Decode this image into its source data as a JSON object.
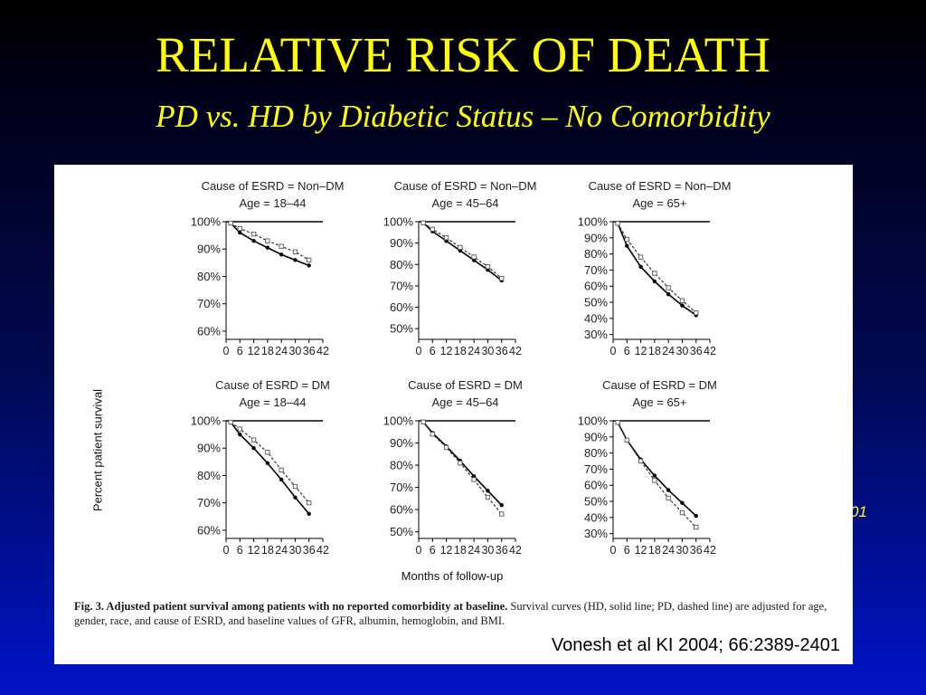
{
  "slide": {
    "title": "RELATIVE RISK OF DEATH",
    "subtitle": "PD vs. HD by Diabetic Status – No Comorbidity",
    "partially_hidden_text": "01",
    "citation": "Vonesh et al KI 2004; 66:2389-2401",
    "colors": {
      "background_top": "#000000",
      "background_bottom": "#0014c8",
      "title": "#ffff00",
      "panel": "#ffffff"
    }
  },
  "figure": {
    "ylabel": "Percent patient survival",
    "xlabel": "Months of follow-up",
    "caption_bold": "Fig. 3.  Adjusted patient survival among patients with no reported comorbidity at baseline.",
    "caption_rest": " Survival curves (HD, solid line; PD, dashed line) are adjusted for age, gender, race, and cause of ESRD, and baseline values of GFR, albumin, hemoglobin, and BMI."
  },
  "chart_data": [
    {
      "type": "line",
      "title": [
        "Cause of ESRD = Non–DM",
        "Age = 18–44"
      ],
      "x": [
        0,
        6,
        12,
        18,
        24,
        30,
        36,
        42
      ],
      "xticks": [
        "0",
        "6",
        "12",
        "18",
        "24",
        "30",
        "36",
        "42"
      ],
      "ylim": [
        57,
        100
      ],
      "yticks": [
        60,
        70,
        80,
        90,
        100
      ],
      "yticklabels": [
        "60%",
        "70%",
        "80%",
        "90%",
        "100%"
      ],
      "series": [
        {
          "style": "solid",
          "marker": "filled",
          "points": [
            [
              2,
              99.5
            ],
            [
              6,
              96
            ],
            [
              12,
              93
            ],
            [
              18,
              90.5
            ],
            [
              24,
              88
            ],
            [
              30,
              86
            ],
            [
              36,
              84
            ]
          ]
        },
        {
          "style": "dashed",
          "marker": "open",
          "points": [
            [
              2,
              99.5
            ],
            [
              6,
              97.5
            ],
            [
              12,
              95.5
            ],
            [
              18,
              93
            ],
            [
              24,
              91
            ],
            [
              30,
              89
            ],
            [
              36,
              86
            ]
          ]
        }
      ]
    },
    {
      "type": "line",
      "title": [
        "Cause of ESRD = Non–DM",
        "Age = 45–64"
      ],
      "x": [
        0,
        6,
        12,
        18,
        24,
        30,
        36,
        42
      ],
      "xticks": [
        "0",
        "6",
        "12",
        "18",
        "24",
        "30",
        "36",
        "42"
      ],
      "ylim": [
        45,
        100
      ],
      "yticks": [
        50,
        60,
        70,
        80,
        90,
        100
      ],
      "yticklabels": [
        "50%",
        "60%",
        "70%",
        "80%",
        "90%",
        "100%"
      ],
      "series": [
        {
          "style": "solid",
          "marker": "filled",
          "points": [
            [
              2,
              99.5
            ],
            [
              6,
              95.5
            ],
            [
              12,
              91
            ],
            [
              18,
              86.5
            ],
            [
              24,
              82
            ],
            [
              30,
              77.5
            ],
            [
              36,
              72.5
            ]
          ]
        },
        {
          "style": "dashed",
          "marker": "open",
          "points": [
            [
              2,
              99.5
            ],
            [
              6,
              96.5
            ],
            [
              12,
              92.5
            ],
            [
              18,
              88
            ],
            [
              24,
              83.5
            ],
            [
              30,
              79
            ],
            [
              36,
              73.5
            ]
          ]
        }
      ]
    },
    {
      "type": "line",
      "title": [
        "Cause of ESRD = Non–DM",
        "Age = 65+"
      ],
      "x": [
        0,
        6,
        12,
        18,
        24,
        30,
        36,
        42
      ],
      "xticks": [
        "0",
        "6",
        "12",
        "18",
        "24",
        "30",
        "36",
        "42"
      ],
      "ylim": [
        27,
        100
      ],
      "yticks": [
        30,
        40,
        50,
        60,
        70,
        80,
        90,
        100
      ],
      "yticklabels": [
        "30%",
        "40%",
        "50%",
        "60%",
        "70%",
        "80%",
        "90%",
        "100%"
      ],
      "series": [
        {
          "style": "solid",
          "marker": "filled",
          "points": [
            [
              2,
              99
            ],
            [
              6,
              85
            ],
            [
              12,
              72
            ],
            [
              18,
              63
            ],
            [
              24,
              55
            ],
            [
              30,
              48
            ],
            [
              36,
              42
            ]
          ]
        },
        {
          "style": "dashed",
          "marker": "open",
          "points": [
            [
              2,
              99
            ],
            [
              6,
              89
            ],
            [
              12,
              78
            ],
            [
              18,
              68
            ],
            [
              24,
              59
            ],
            [
              30,
              51
            ],
            [
              36,
              43.5
            ]
          ]
        }
      ]
    },
    {
      "type": "line",
      "title": [
        "Cause of ESRD = DM",
        "Age = 18–44"
      ],
      "x": [
        0,
        6,
        12,
        18,
        24,
        30,
        36,
        42
      ],
      "xticks": [
        "0",
        "6",
        "12",
        "18",
        "24",
        "30",
        "36",
        "42"
      ],
      "ylim": [
        57,
        100
      ],
      "yticks": [
        60,
        70,
        80,
        90,
        100
      ],
      "yticklabels": [
        "60%",
        "70%",
        "80%",
        "90%",
        "100%"
      ],
      "series": [
        {
          "style": "solid",
          "marker": "filled",
          "points": [
            [
              2,
              99.5
            ],
            [
              6,
              95
            ],
            [
              12,
              90
            ],
            [
              18,
              84.5
            ],
            [
              24,
              78.5
            ],
            [
              30,
              72
            ],
            [
              36,
              66
            ]
          ]
        },
        {
          "style": "dashed",
          "marker": "open",
          "points": [
            [
              2,
              99.5
            ],
            [
              6,
              97
            ],
            [
              12,
              93
            ],
            [
              18,
              88.5
            ],
            [
              24,
              82
            ],
            [
              30,
              76
            ],
            [
              36,
              70
            ]
          ]
        }
      ]
    },
    {
      "type": "line",
      "title": [
        "Cause of ESRD = DM",
        "Age = 45–64"
      ],
      "x": [
        0,
        6,
        12,
        18,
        24,
        30,
        36,
        42
      ],
      "xticks": [
        "0",
        "6",
        "12",
        "18",
        "24",
        "30",
        "36",
        "42"
      ],
      "ylim": [
        47,
        100
      ],
      "yticks": [
        50,
        60,
        70,
        80,
        90,
        100
      ],
      "yticklabels": [
        "50%",
        "60%",
        "70%",
        "80%",
        "90%",
        "100%"
      ],
      "series": [
        {
          "style": "solid",
          "marker": "filled",
          "points": [
            [
              2,
              99.5
            ],
            [
              6,
              94.5
            ],
            [
              12,
              88.5
            ],
            [
              18,
              82
            ],
            [
              24,
              75
            ],
            [
              30,
              68.5
            ],
            [
              36,
              62
            ]
          ]
        },
        {
          "style": "dashed",
          "marker": "open",
          "points": [
            [
              2,
              99.5
            ],
            [
              6,
              94
            ],
            [
              12,
              88
            ],
            [
              18,
              81
            ],
            [
              24,
              73.5
            ],
            [
              30,
              65.5
            ],
            [
              36,
              58
            ]
          ]
        }
      ]
    },
    {
      "type": "line",
      "title": [
        "Cause of ESRD = DM",
        "Age = 65+"
      ],
      "x": [
        0,
        6,
        12,
        18,
        24,
        30,
        36,
        42
      ],
      "xticks": [
        "0",
        "6",
        "12",
        "18",
        "24",
        "30",
        "36",
        "42"
      ],
      "ylim": [
        27,
        100
      ],
      "yticks": [
        30,
        40,
        50,
        60,
        70,
        80,
        90,
        100
      ],
      "yticklabels": [
        "30%",
        "40%",
        "50%",
        "60%",
        "70%",
        "80%",
        "90%",
        "100%"
      ],
      "series": [
        {
          "style": "solid",
          "marker": "filled",
          "points": [
            [
              2,
              99
            ],
            [
              6,
              88
            ],
            [
              12,
              76
            ],
            [
              18,
              66
            ],
            [
              24,
              57
            ],
            [
              30,
              49
            ],
            [
              36,
              41
            ]
          ]
        },
        {
          "style": "dashed",
          "marker": "open",
          "points": [
            [
              2,
              99
            ],
            [
              6,
              88
            ],
            [
              12,
              75
            ],
            [
              18,
              63
            ],
            [
              24,
              52
            ],
            [
              30,
              43
            ],
            [
              36,
              34
            ]
          ]
        }
      ]
    }
  ]
}
